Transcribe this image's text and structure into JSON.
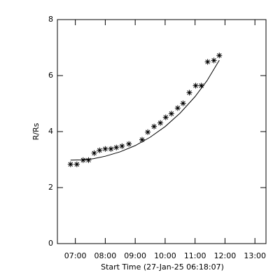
{
  "chart_data": {
    "type": "scatter",
    "x_label": "Start Time (27-Jan-25 06:18:07)",
    "y_label": "R/Rs",
    "xlim": [
      6.4,
      13.37
    ],
    "ylim": [
      0,
      8
    ],
    "xticks": [
      {
        "value": 7,
        "label": "07:00"
      },
      {
        "value": 8,
        "label": "08:00"
      },
      {
        "value": 9,
        "label": "09:00"
      },
      {
        "value": 10,
        "label": "10:00"
      },
      {
        "value": 11,
        "label": "11:00"
      },
      {
        "value": 12,
        "label": "12:00"
      },
      {
        "value": 13,
        "label": "13:00"
      }
    ],
    "yticks": [
      0,
      2,
      4,
      6,
      8
    ],
    "color": "#000000",
    "series": [
      {
        "marker": "asterisk",
        "x": [
          6.84,
          7.05,
          7.26,
          7.44,
          7.63,
          7.81,
          8.0,
          8.19,
          8.37,
          8.56,
          8.79,
          9.23,
          9.42,
          9.63,
          9.84,
          10.02,
          10.21,
          10.42,
          10.6,
          10.81,
          11.02,
          11.21,
          11.42,
          11.63,
          11.81
        ],
        "values": [
          2.83,
          2.83,
          2.98,
          2.98,
          3.23,
          3.33,
          3.38,
          3.38,
          3.43,
          3.48,
          3.56,
          3.71,
          3.98,
          4.18,
          4.31,
          4.51,
          4.64,
          4.84,
          5.01,
          5.39,
          5.64,
          5.64,
          6.49,
          6.54,
          6.72
        ]
      },
      {
        "marker": "line",
        "x": [
          6.84,
          7.2,
          7.6,
          8.0,
          8.5,
          9.0,
          9.5,
          10.0,
          10.5,
          11.0,
          11.4,
          11.81
        ],
        "values": [
          2.98,
          2.99,
          3.03,
          3.12,
          3.28,
          3.5,
          3.8,
          4.18,
          4.66,
          5.25,
          5.82,
          6.55
        ]
      }
    ]
  }
}
